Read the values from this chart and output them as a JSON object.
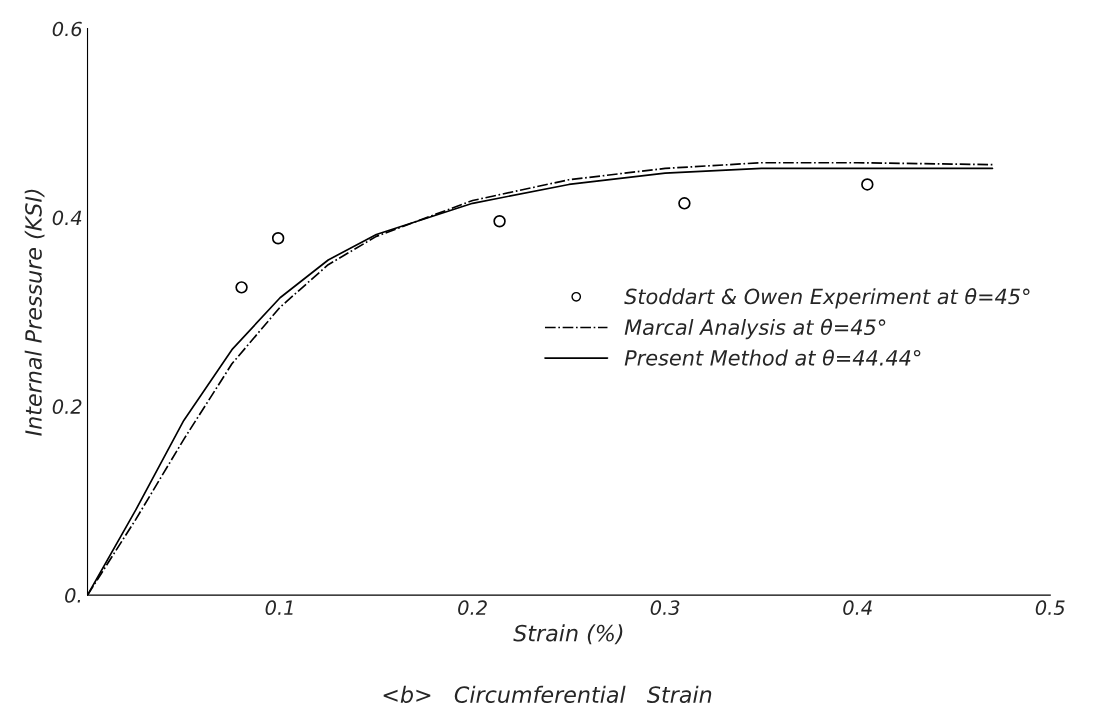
{
  "chart_data": {
    "type": "line",
    "xlabel": "Strain (%)",
    "ylabel": "Internal Pressure (KSI)",
    "annotations": [
      "<b>   Circumferential   Strain"
    ],
    "xlim": [
      0,
      0.5
    ],
    "ylim": [
      0,
      0.6
    ],
    "xticks": [
      0.1,
      0.2,
      0.3,
      0.4,
      0.5
    ],
    "yticks": [
      {
        "value": 0,
        "label": "0."
      },
      0.2,
      0.4,
      0.6
    ],
    "grid": false,
    "legend": "right",
    "series": [
      {
        "name": "Stoddart & Owen Experiment at θ=45°",
        "type": "scatter",
        "marker": "circle",
        "color": "#000000",
        "x": [
          0.08,
          0.099,
          0.214,
          0.31,
          0.405
        ],
        "values": [
          0.326,
          0.378,
          0.396,
          0.415,
          0.435
        ]
      },
      {
        "name": "Marcal Analysis at θ=45°",
        "line_style": "dashdot",
        "marker": "none",
        "color": "#000000",
        "x": [
          0,
          0.025,
          0.05,
          0.075,
          0.1,
          0.125,
          0.15,
          0.2,
          0.25,
          0.3,
          0.35,
          0.4,
          0.47
        ],
        "values": [
          0,
          0.08,
          0.165,
          0.245,
          0.305,
          0.35,
          0.38,
          0.418,
          0.44,
          0.452,
          0.458,
          0.458,
          0.456
        ]
      },
      {
        "name": "Present Method at θ=44.44°",
        "line_style": "solid",
        "marker": "none",
        "color": "#000000",
        "x": [
          0,
          0.025,
          0.05,
          0.075,
          0.1,
          0.125,
          0.15,
          0.2,
          0.25,
          0.3,
          0.35,
          0.4,
          0.47
        ],
        "values": [
          0,
          0.09,
          0.185,
          0.26,
          0.315,
          0.355,
          0.382,
          0.415,
          0.435,
          0.447,
          0.452,
          0.452,
          0.452
        ]
      }
    ]
  }
}
